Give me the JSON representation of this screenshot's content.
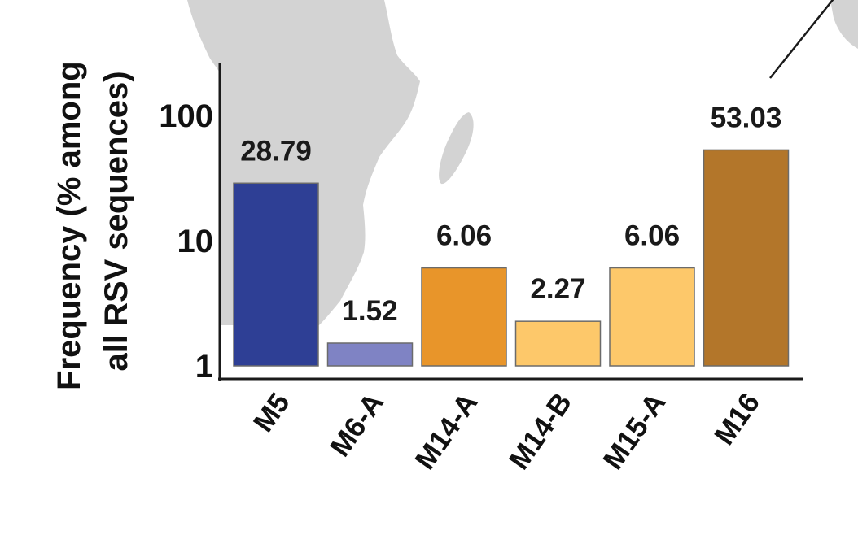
{
  "colors": {
    "map_land": "#d3d3d3",
    "axis": "#1a1a1a",
    "bar_stroke": "#6b6b6b"
  },
  "chart_data": {
    "type": "bar",
    "yscale": "log",
    "ylim": [
      1,
      200
    ],
    "yticks": [
      1,
      10,
      100
    ],
    "ytick_labels": [
      "1",
      "10",
      "100"
    ],
    "ylabel": [
      "Frequency (% among",
      "all RSV sequences)"
    ],
    "xlabel": "",
    "grid": false,
    "categories": [
      "M5",
      "M6-A",
      "M14-A",
      "M14-B",
      "M15-A",
      "M16"
    ],
    "values": [
      28.79,
      1.52,
      6.06,
      2.27,
      6.06,
      53.03
    ],
    "value_labels": [
      "28.79",
      "1.52",
      "6.06",
      "2.27",
      "6.06",
      "53.03"
    ],
    "bar_colors": [
      "#2e3f95",
      "#7f83c4",
      "#e8952a",
      "#fdc86a",
      "#fdc86a",
      "#b3762a"
    ]
  }
}
